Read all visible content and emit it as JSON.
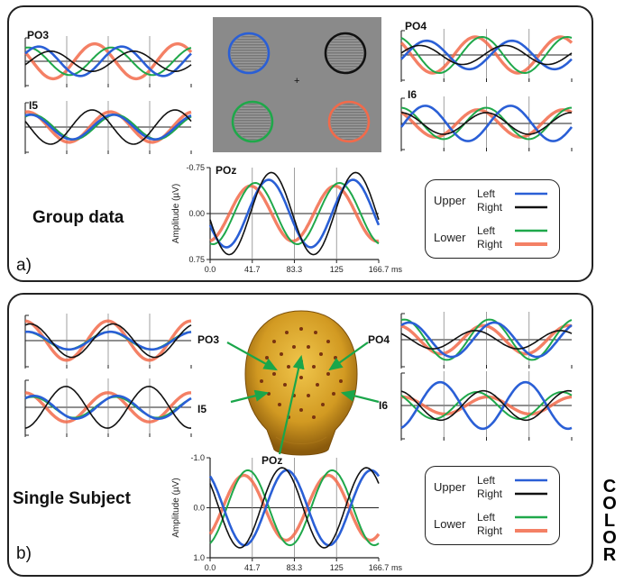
{
  "colors": {
    "upper_left": "#2a5fd6",
    "upper_right": "#111111",
    "lower_left": "#1fa84a",
    "lower_right": "#f26a4a"
  },
  "panel_a": {
    "label": "a)",
    "title": "Group data",
    "stimulus": {
      "rings": [
        "upper_left",
        "upper_right",
        "lower_left",
        "lower_right"
      ],
      "fixation": "+"
    },
    "traces": {
      "po3": {
        "label": "PO3",
        "amp": [
          0.8,
          0.55,
          0.75,
          0.95
        ],
        "phase": [
          0.55,
          -0.35,
          1.35,
          2.6
        ]
      },
      "i5": {
        "label": "I5",
        "amp": [
          0.65,
          0.9,
          0.65,
          0.8
        ],
        "phase": [
          1.2,
          2.8,
          1.0,
          1.4
        ]
      },
      "po4": {
        "label": "PO4",
        "amp": [
          0.75,
          0.5,
          0.95,
          0.95
        ],
        "phase": [
          -0.3,
          0.2,
          1.9,
          2.4
        ]
      },
      "i6": {
        "label": "I6",
        "amp": [
          0.9,
          0.55,
          0.8,
          0.7
        ],
        "phase": [
          -0.2,
          1.6,
          1.6,
          2.2
        ]
      }
    },
    "main": {
      "label": "POz",
      "ylabel": "Amplitude (µV)",
      "xunit": "ms",
      "ylim": [
        -0.75,
        0.75
      ],
      "yticks": [
        "-0.75",
        "0.00",
        "0.75"
      ],
      "xticks": [
        "0.0",
        "41.7",
        "83.3",
        "125",
        "166.7"
      ],
      "amp": [
        0.55,
        0.67,
        0.5,
        0.45
      ],
      "phase": [
        0.35,
        0.15,
        1.35,
        1.7
      ]
    },
    "legend": {
      "upper": "Upper",
      "lower": "Lower",
      "left": "Left",
      "right": "Right"
    }
  },
  "panel_b": {
    "label": "b)",
    "title": "Single Subject",
    "electrodes": {
      "po3": "PO3",
      "po4": "PO4",
      "i5": "I5",
      "i6": "I6",
      "poz": "POz"
    },
    "traces": {
      "po3": {
        "amp": [
          0.45,
          0.85,
          0.45,
          1.0
        ],
        "phase": [
          1.4,
          1.2,
          1.5,
          1.6
        ]
      },
      "i5": {
        "amp": [
          0.55,
          1.0,
          0.5,
          0.7
        ],
        "phase": [
          0.9,
          -1.5,
          1.0,
          1.6
        ]
      },
      "po4": {
        "amp": [
          0.85,
          0.45,
          1.0,
          0.7
        ],
        "phase": [
          1.0,
          2.4,
          1.35,
          1.8
        ]
      },
      "i6": {
        "amp": [
          0.95,
          0.6,
          0.55,
          0.35
        ],
        "phase": [
          -1.3,
          1.8,
          2.3,
          1.5
        ]
      }
    },
    "main": {
      "ylabel": "Amplitude (µV)",
      "xunit": "ms",
      "ylim": [
        -1.0,
        1.0
      ],
      "yticks": [
        "-1.0",
        "0.0",
        "1.0"
      ],
      "xticks": [
        "0.0",
        "41.7",
        "83.3",
        "125",
        "166.7"
      ],
      "amp": [
        0.75,
        0.8,
        0.75,
        0.65
      ],
      "phase": [
        -1.0,
        -0.65,
        1.9,
        2.2
      ]
    },
    "legend": {
      "upper": "Upper",
      "lower": "Lower",
      "left": "Left",
      "right": "Right"
    }
  },
  "side_text": [
    "C",
    "O",
    "L",
    "O",
    "R"
  ]
}
